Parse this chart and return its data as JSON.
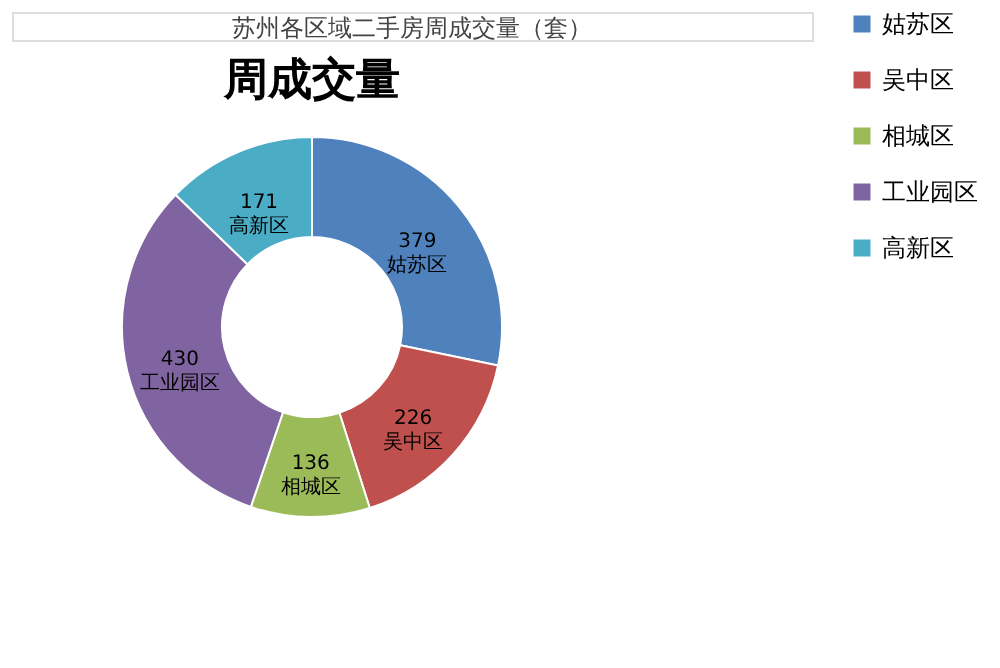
{
  "chart_data": {
    "type": "donut",
    "title": "周成交量",
    "annotations": [
      "苏州各区域二手房周成交量（套）"
    ],
    "categories": [
      "姑苏区",
      "吴中区",
      "相城区",
      "工业园区",
      "高新区"
    ],
    "values": [
      379,
      226,
      136,
      430,
      171
    ],
    "colors": [
      "#4f81bd",
      "#c0504d",
      "#9bbb59",
      "#8064a2",
      "#4bacc6"
    ],
    "data_labels": true,
    "legend": "right"
  }
}
